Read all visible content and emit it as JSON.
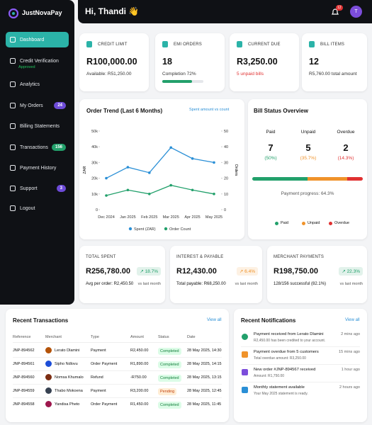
{
  "brand": "JustNovaPay",
  "nav": [
    {
      "label": "Dashboard"
    },
    {
      "label": "Credit Verification",
      "status": "Approved"
    },
    {
      "label": "Analytics"
    },
    {
      "label": "My Orders",
      "badge": "24"
    },
    {
      "label": "Billing Statements"
    },
    {
      "label": "Transactions",
      "badge": "156"
    },
    {
      "label": "Payment History"
    },
    {
      "label": "Support",
      "badge": "3"
    },
    {
      "label": "Logout"
    }
  ],
  "header": {
    "greeting": "Hi, Thandi 👋",
    "notifications": "12",
    "avatar": "T"
  },
  "stat_cards": [
    {
      "label": "CREDIT LIMIT",
      "value": "R100,000.00",
      "note": "Available: R51,250.00"
    },
    {
      "label": "EMI ORDERS",
      "value": "18",
      "note": "Completion 72%",
      "progress": 72
    },
    {
      "label": "CURRENT DUE",
      "value": "R3,250.00",
      "note": "5 unpaid bills"
    },
    {
      "label": "BILL ITEMS",
      "value": "12",
      "note": "R5,760.00 total amount"
    }
  ],
  "chart_data": {
    "type": "line",
    "title": "Order Trend (Last 6 Months)",
    "toggle": "Spent amount vs count",
    "categories": [
      "Dec 2024",
      "Jan 2025",
      "Feb 2025",
      "Mar 2025",
      "Apr 2025",
      "May 2025"
    ],
    "series": [
      {
        "name": "Spent (ZAR)",
        "color": "#2a8fd6",
        "values": [
          20000,
          27000,
          23500,
          39500,
          32500,
          30000
        ]
      },
      {
        "name": "Order Count",
        "color": "#22a06b",
        "axis": "y2",
        "values": [
          9,
          12.5,
          10,
          15.5,
          12.5,
          10
        ]
      }
    ],
    "ylim": [
      0,
      50000
    ],
    "yticks": [
      0,
      {
        "value": 10000,
        "label": "10k"
      },
      {
        "value": 20000,
        "label": "20k"
      },
      {
        "value": 30000,
        "label": "30k"
      },
      {
        "value": 40000,
        "label": "40k"
      },
      {
        "value": 50000,
        "label": "50k"
      }
    ],
    "y2lim": [
      0,
      50
    ],
    "y2ticks": [
      0,
      10,
      20,
      30,
      40,
      50
    ],
    "ylabel": "ZAR",
    "y2label": "Orders",
    "legend": "bottom"
  },
  "bill_status": {
    "title": "Bill Status Overview",
    "items": [
      {
        "name": "Paid",
        "count": 7,
        "percent": "(50%)",
        "color": "#22a06b"
      },
      {
        "name": "Unpaid",
        "count": 5,
        "percent": "(35.7%)",
        "color": "#f0932b"
      },
      {
        "name": "Overdue",
        "count": 2,
        "percent": "(14.3%)",
        "color": "#e03131"
      }
    ],
    "progress": "Payment progress: 64.3%"
  },
  "summary_cards": [
    {
      "label": "TOTAL SPENT",
      "value": "R256,780.00",
      "change": "↗ 18.7%",
      "note": "Avg per order: R2,450.50",
      "compare": "vs last month",
      "color": "#22a06b"
    },
    {
      "label": "INTEREST & PAYABLE",
      "value": "R12,430.00",
      "change": "↗ 6.4%",
      "note": "Total payable: R68,250.00",
      "compare": "vs last month",
      "color": "#f0932b"
    },
    {
      "label": "MERCHANT PAYMENTS",
      "value": "R198,750.00",
      "change": "↗ 22.3%",
      "note": "128/156 successful (82.1%)",
      "compare": "vs last month",
      "color": "#22a06b"
    }
  ],
  "transactions": {
    "title": "Recent Transactions",
    "link": "View all",
    "columns": [
      "Reference",
      "Merchant",
      "Type",
      "Amount",
      "Status",
      "Date"
    ],
    "rows": [
      [
        "JNP-894562",
        "Lerato Dlamini",
        "Payment",
        "R2,450.00",
        "Completed",
        "28 May 2025, 14:30"
      ],
      [
        "JNP-894561",
        "Sipho Ndlovu",
        "Order Payment",
        "R1,890.00",
        "Completed",
        "28 May 2025, 14:15"
      ],
      [
        "JNP-894560",
        "Nomsa Khumalo",
        "Refund",
        "-R750.00",
        "Completed",
        "28 May 2025, 13:15"
      ],
      [
        "JNP-894559",
        "Thabo Mokoena",
        "Payment",
        "R3,200.00",
        "Pending",
        "28 May 2025, 12:45"
      ],
      [
        "JNP-894558",
        "Yandisa Pheto",
        "Order Payment",
        "R1,450.00",
        "Completed",
        "28 May 2025, 11:45"
      ]
    ]
  },
  "notifications": {
    "title": "Recent Notifications",
    "link": "View all",
    "items": [
      {
        "title": "Payment received from Lerato Dlamini",
        "text": "R2,450.00 has been credited to your account.",
        "time": "2 mins ago",
        "color": "#22a06b"
      },
      {
        "title": "Payment overdue from 5 customers",
        "text": "Total overdue amount: R3,250.00",
        "time": "15 mins ago",
        "color": "#f0932b"
      },
      {
        "title": "New order #JNP-894567 received",
        "text": "Amount: R1,750.00",
        "time": "1 hour ago",
        "color": "#7c4ddb"
      },
      {
        "title": "Monthly statement available",
        "text": "Your May 2025 statement is ready.",
        "time": "2 hours ago",
        "color": "#2a8fd6"
      }
    ]
  }
}
